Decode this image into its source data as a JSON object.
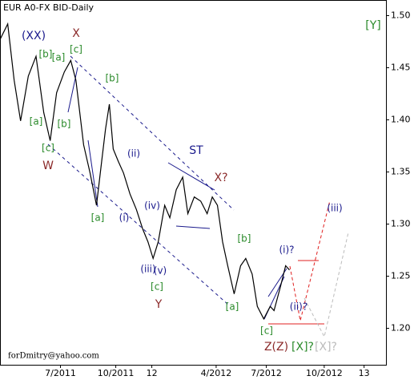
{
  "chart_data": {
    "type": "line",
    "title": "EUR A0-FX BID-Daily",
    "footer": "forDmitry@yahoo.com",
    "series": [
      {
        "name": "EUR A0-FX BID",
        "color": "#000000",
        "x": [
          0,
          6,
          11,
          16,
          22,
          28,
          34,
          39,
          44,
          50,
          55,
          59,
          65,
          70,
          75,
          79,
          82,
          85,
          88,
          92,
          96,
          101,
          106,
          111,
          115,
          119,
          123,
          128,
          132,
          137,
          142,
          146,
          151,
          156,
          161,
          165,
          169,
          173,
          177,
          182,
          187,
          191,
          196,
          200,
          205,
          210,
          213,
          218,
          222,
          225
        ],
        "values": [
          1.477,
          1.492,
          1.438,
          1.399,
          1.442,
          1.461,
          1.407,
          1.38,
          1.426,
          1.446,
          1.457,
          1.438,
          1.376,
          1.349,
          1.318,
          1.36,
          1.391,
          1.415,
          1.372,
          1.36,
          1.349,
          1.329,
          1.314,
          1.295,
          1.283,
          1.267,
          1.283,
          1.318,
          1.306,
          1.333,
          1.345,
          1.31,
          1.326,
          1.322,
          1.31,
          1.326,
          1.318,
          1.283,
          1.26,
          1.233,
          1.26,
          1.267,
          1.252,
          1.221,
          1.209,
          1.221,
          1.217,
          1.24,
          1.26,
          1.256
        ]
      }
    ],
    "xlim": [
      0,
      300
    ],
    "ylim": [
      1.165,
      1.515
    ],
    "xticks": [
      {
        "value": 47,
        "label": "7/2011"
      },
      {
        "value": 90,
        "label": "10/2011"
      },
      {
        "value": 118,
        "label": "12"
      },
      {
        "value": 168,
        "label": "4/2012"
      },
      {
        "value": 207,
        "label": "7/2012"
      },
      {
        "value": 252,
        "label": "10/2012"
      },
      {
        "value": 283,
        "label": "13"
      }
    ],
    "yticks": [
      {
        "value": 1.2,
        "label": "1.20"
      },
      {
        "value": 1.25,
        "label": "1.25"
      },
      {
        "value": 1.3,
        "label": "1.30"
      },
      {
        "value": 1.35,
        "label": "1.35"
      },
      {
        "value": 1.4,
        "label": "1.40"
      },
      {
        "value": 1.45,
        "label": "1.45"
      },
      {
        "value": 1.5,
        "label": "1.50"
      }
    ],
    "annotations": [
      {
        "text": "(XX)",
        "color": "#1a1a8c"
      },
      {
        "text": "X",
        "color": "#8b2a2a"
      },
      {
        "text": "[Y]",
        "color": "#2a8a2a"
      },
      {
        "text": "[b]",
        "color": "#2a8a2a"
      },
      {
        "text": "[a]",
        "color": "#2a8a2a"
      },
      {
        "text": "[c]",
        "color": "#2a8a2a"
      },
      {
        "text": "[b]",
        "color": "#2a8a2a"
      },
      {
        "text": "[a]",
        "color": "#2a8a2a"
      },
      {
        "text": "[b]",
        "color": "#2a8a2a"
      },
      {
        "text": "[c]",
        "color": "#2a8a2a"
      },
      {
        "text": "W",
        "color": "#8b2a2a"
      },
      {
        "text": "(ii)",
        "color": "#1a1a8c"
      },
      {
        "text": "ST",
        "color": "#1a1a8c"
      },
      {
        "text": "X?",
        "color": "#8b2a2a"
      },
      {
        "text": "[a]",
        "color": "#2a8a2a"
      },
      {
        "text": "(i)",
        "color": "#1a1a8c"
      },
      {
        "text": "(iv)",
        "color": "#1a1a8c"
      },
      {
        "text": "(iii)",
        "color": "#1a1a8c"
      },
      {
        "text": "(v)",
        "color": "#1a1a8c"
      },
      {
        "text": "[c]",
        "color": "#2a8a2a"
      },
      {
        "text": "Y",
        "color": "#8b2a2a"
      },
      {
        "text": "[b]",
        "color": "#2a8a2a"
      },
      {
        "text": "(i)?",
        "color": "#1a1a8c"
      },
      {
        "text": "(iii)",
        "color": "#1a1a8c"
      },
      {
        "text": "(ii)?",
        "color": "#1a1a8c"
      },
      {
        "text": "[a]",
        "color": "#2a8a2a"
      },
      {
        "text": "[c]",
        "color": "#2a8a2a"
      },
      {
        "text": "Z(Z)",
        "color": "#8b2a2a"
      },
      {
        "text": "[X]?",
        "color": "#2a8a2a"
      },
      {
        "text": "[X]?",
        "color": "#bbbbbb"
      }
    ]
  }
}
